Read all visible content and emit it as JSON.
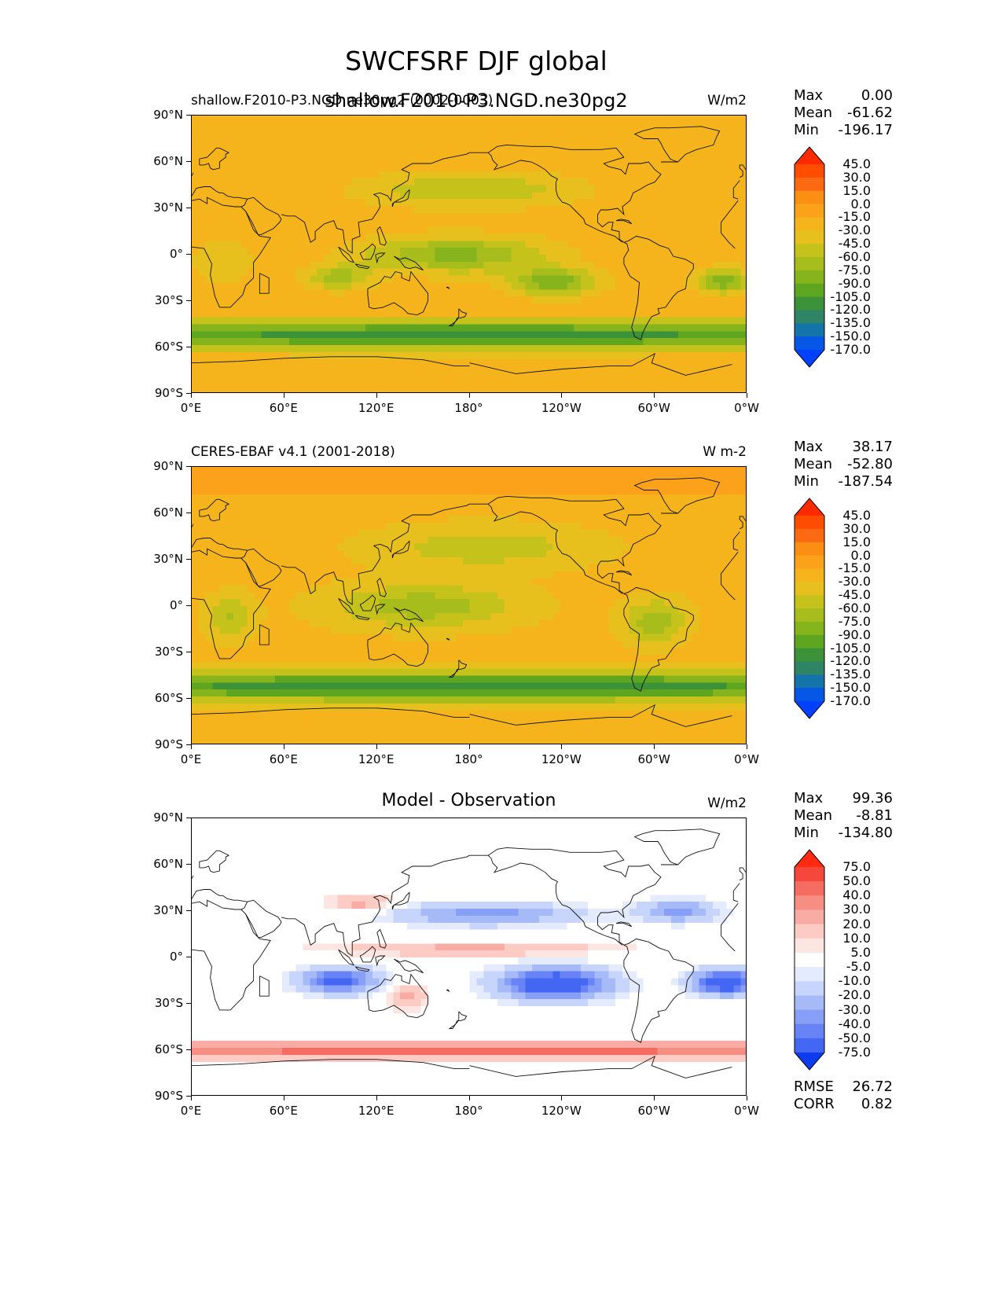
{
  "figure": {
    "main_title": "SWCFSRF DJF global",
    "overlay_title": "shallow.F2010-P3.NGD.ne30pg2"
  },
  "axes": {
    "lat_ticks": [
      "90°N",
      "60°N",
      "30°N",
      "0°",
      "30°S",
      "60°S",
      "90°S"
    ],
    "lon_ticks": [
      "0°E",
      "60°E",
      "120°E",
      "180°",
      "120°W",
      "60°W",
      "0°W"
    ]
  },
  "panels": [
    {
      "left_title": "shallow.F2010-P3.NGD.ne30pg2 (0002-0003)",
      "right_title": "W/m2",
      "center_title": "",
      "stats": [
        {
          "label": "Max",
          "value": "0.00"
        },
        {
          "label": "Mean",
          "value": "-61.62"
        },
        {
          "label": "Min",
          "value": "-196.17"
        }
      ],
      "colorbar": {
        "levels": [
          "45.0",
          "30.0",
          "15.0",
          "0.0",
          "-15.0",
          "-30.0",
          "-45.0",
          "-60.0",
          "-75.0",
          "-90.0",
          "-105.0",
          "-120.0",
          "-135.0",
          "-150.0",
          "-170.0"
        ],
        "colors": [
          "#ff2a00",
          "#ff4d00",
          "#fb6a12",
          "#fb8f14",
          "#fca21a",
          "#f5b41c",
          "#e8c01e",
          "#c6c21c",
          "#a7bd1c",
          "#86b41c",
          "#5ea61f",
          "#3b9239",
          "#2f8466",
          "#1473a9",
          "#0757e6",
          "#0040ff"
        ]
      },
      "field": "model"
    },
    {
      "left_title": "CERES-EBAF v4.1 (2001-2018)",
      "right_title": "W m-2",
      "center_title": "",
      "stats": [
        {
          "label": "Max",
          "value": "38.17"
        },
        {
          "label": "Mean",
          "value": "-52.80"
        },
        {
          "label": "Min",
          "value": "-187.54"
        }
      ],
      "colorbar": {
        "levels": [
          "45.0",
          "30.0",
          "15.0",
          "0.0",
          "-15.0",
          "-30.0",
          "-45.0",
          "-60.0",
          "-75.0",
          "-90.0",
          "-105.0",
          "-120.0",
          "-135.0",
          "-150.0",
          "-170.0"
        ],
        "colors": [
          "#ff2a00",
          "#ff4d00",
          "#fb6a12",
          "#fb8f14",
          "#fca21a",
          "#f5b41c",
          "#e8c01e",
          "#c6c21c",
          "#a7bd1c",
          "#86b41c",
          "#5ea61f",
          "#3b9239",
          "#2f8466",
          "#1473a9",
          "#0757e6",
          "#0040ff"
        ]
      },
      "field": "obs"
    },
    {
      "left_title": "",
      "right_title": "W/m2",
      "center_title": "Model - Observation",
      "stats": [
        {
          "label": "Max",
          "value": "99.36"
        },
        {
          "label": "Mean",
          "value": "-8.81"
        },
        {
          "label": "Min",
          "value": "-134.80"
        }
      ],
      "colorbar": {
        "levels": [
          "75.0",
          "50.0",
          "40.0",
          "30.0",
          "20.0",
          "10.0",
          "5.0",
          "-5.0",
          "-10.0",
          "-20.0",
          "-30.0",
          "-40.0",
          "-50.0",
          "-75.0"
        ],
        "colors": [
          "#ff2a10",
          "#f5473c",
          "#f56c62",
          "#f68e84",
          "#f8aca4",
          "#fbcbc4",
          "#fde5e1",
          "#ffffff",
          "#e4ebfc",
          "#c7d4fb",
          "#a6baf8",
          "#879ff6",
          "#6783f5",
          "#4366f3",
          "#0d3cf0"
        ]
      },
      "field": "diff"
    }
  ],
  "diff_metrics": [
    {
      "label": "RMSE",
      "value": "26.72"
    },
    {
      "label": "CORR",
      "value": "0.82"
    }
  ]
}
